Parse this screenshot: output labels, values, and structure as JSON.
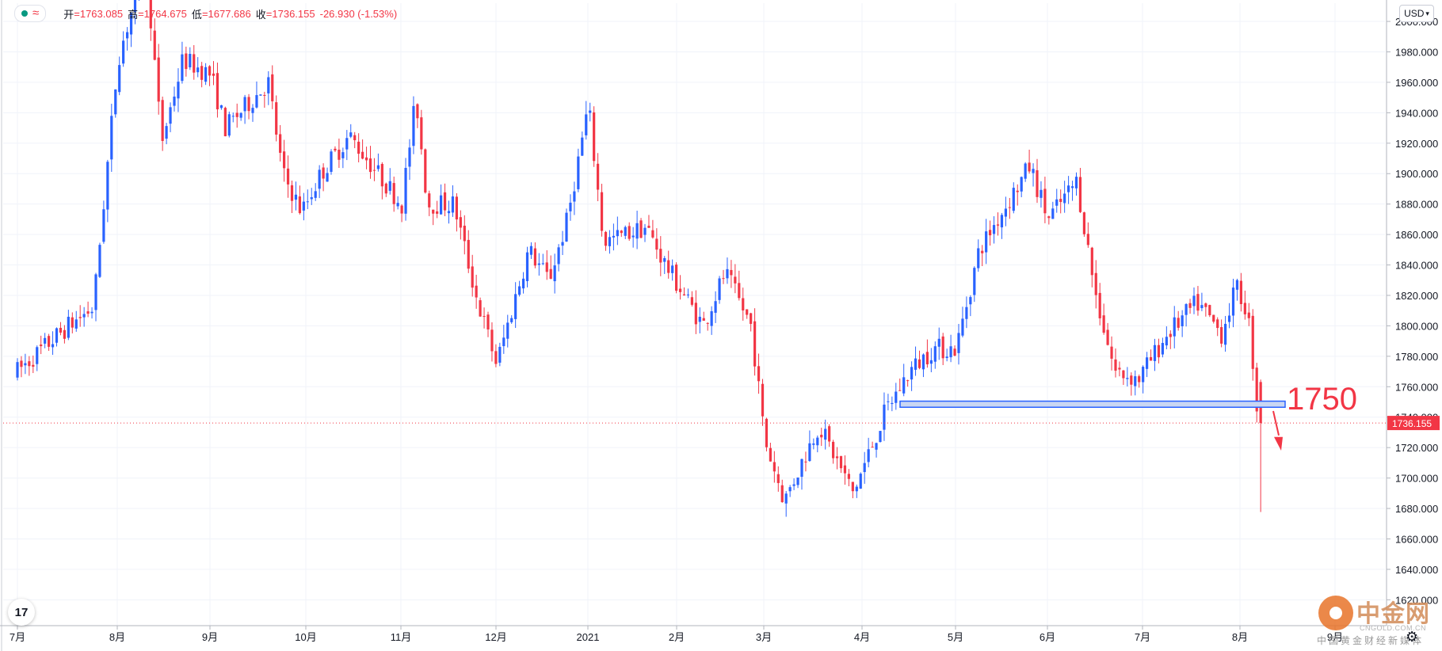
{
  "legend": {
    "open_label": "开",
    "open_value": "=1763.085",
    "high_label": "高",
    "high_value": "=1764.675",
    "low_label": "低",
    "low_value": "=1677.686",
    "close_label": "收",
    "close_value": "=1736.155",
    "change_value": "-26.930 (-1.53%)",
    "wave_symbol": "≈"
  },
  "toolbar": {
    "currency": "USD",
    "currency_caret": "▾",
    "logo_text": "17",
    "settings_icon": "⚙"
  },
  "watermark": {
    "title": "中金网",
    "domain": "CNGOLD.COM.CN",
    "subtitle": "中国黄金财经新媒体"
  },
  "annotation": {
    "level_text": "1750"
  },
  "colors": {
    "up": "#2962ff",
    "down": "#f23645",
    "grid": "#f0f3fa",
    "axis_text": "#131722",
    "price_tag_bg": "#f23645",
    "support_fill": "#c9d6f2",
    "support_stroke": "#2962ff"
  },
  "chart_data": {
    "type": "candlestick",
    "symbol_currency": "USD",
    "y_axis_ticks": [
      "2000.000",
      "1980.000",
      "1960.000",
      "1940.000",
      "1920.000",
      "1900.000",
      "1880.000",
      "1860.000",
      "1840.000",
      "1820.000",
      "1800.000",
      "1780.000",
      "1760.000",
      "1740.000",
      "1720.000",
      "1700.000",
      "1680.000",
      "1660.000",
      "1640.000",
      "1620.000"
    ],
    "ylim": [
      1603,
      2012
    ],
    "x_axis_ticks": [
      "7月",
      "8月",
      "9月",
      "10月",
      "11月",
      "12月",
      "2021",
      "2月",
      "3月",
      "4月",
      "5月",
      "6月",
      "7月",
      "8月",
      "9月"
    ],
    "last_price": 1736.155,
    "last_price_label": "1736.155",
    "support_level": 1750,
    "support_zone": [
      1746.5,
      1750.5
    ],
    "anchors": [
      [
        "7月",
        0,
        1768
      ],
      [
        "7月",
        0.55,
        1800
      ],
      [
        "7月",
        0.8,
        1812
      ],
      [
        "8月",
        0.05,
        1975
      ],
      [
        "8月",
        0.35,
        2040
      ],
      [
        "8月",
        0.52,
        1920
      ],
      [
        "8月",
        0.75,
        1975
      ],
      [
        "9月",
        0.05,
        1965
      ],
      [
        "9月",
        0.2,
        1930
      ],
      [
        "9月",
        0.5,
        1950
      ],
      [
        "9月",
        0.65,
        1960
      ],
      [
        "9月",
        0.8,
        1900
      ],
      [
        "10月",
        0.0,
        1875
      ],
      [
        "10月",
        0.2,
        1900
      ],
      [
        "10月",
        0.5,
        1925
      ],
      [
        "10月",
        0.8,
        1900
      ],
      [
        "11月",
        0.05,
        1880
      ],
      [
        "11月",
        0.2,
        1950
      ],
      [
        "11月",
        0.32,
        1880
      ],
      [
        "11月",
        0.6,
        1880
      ],
      [
        "11月",
        0.85,
        1815
      ],
      [
        "12月",
        0.05,
        1775
      ],
      [
        "12月",
        0.4,
        1850
      ],
      [
        "12月",
        0.62,
        1830
      ],
      [
        "12月",
        0.82,
        1870
      ],
      [
        "2021",
        0.05,
        1945
      ],
      [
        "2021",
        0.22,
        1855
      ],
      [
        "2021",
        0.7,
        1865
      ],
      [
        "2021",
        0.92,
        1840
      ],
      [
        "2月",
        0.35,
        1800
      ],
      [
        "2月",
        0.6,
        1835
      ],
      [
        "2月",
        0.9,
        1800
      ],
      [
        "3月",
        0.05,
        1725
      ],
      [
        "3月",
        0.25,
        1685
      ],
      [
        "3月",
        0.6,
        1735
      ],
      [
        "3月",
        0.95,
        1690
      ],
      [
        "4月",
        0.3,
        1745
      ],
      [
        "4月",
        0.55,
        1770
      ],
      [
        "4月",
        0.8,
        1785
      ],
      [
        "5月",
        0.05,
        1785
      ],
      [
        "5月",
        0.3,
        1850
      ],
      [
        "5月",
        0.6,
        1880
      ],
      [
        "5月",
        0.85,
        1905
      ],
      [
        "6月",
        0.05,
        1870
      ],
      [
        "6月",
        0.35,
        1895
      ],
      [
        "6月",
        0.55,
        1820
      ],
      [
        "6月",
        0.75,
        1770
      ],
      [
        "7月",
        0.0,
        1765
      ],
      [
        "7月",
        0.3,
        1795
      ],
      [
        "7月",
        0.6,
        1815
      ],
      [
        "7月",
        0.85,
        1795
      ],
      [
        "8月",
        0.0,
        1825
      ],
      [
        "8月",
        0.12,
        1810
      ],
      [
        "8月",
        0.2,
        1763
      ],
      [
        "8月",
        0.23,
        1736
      ]
    ]
  }
}
